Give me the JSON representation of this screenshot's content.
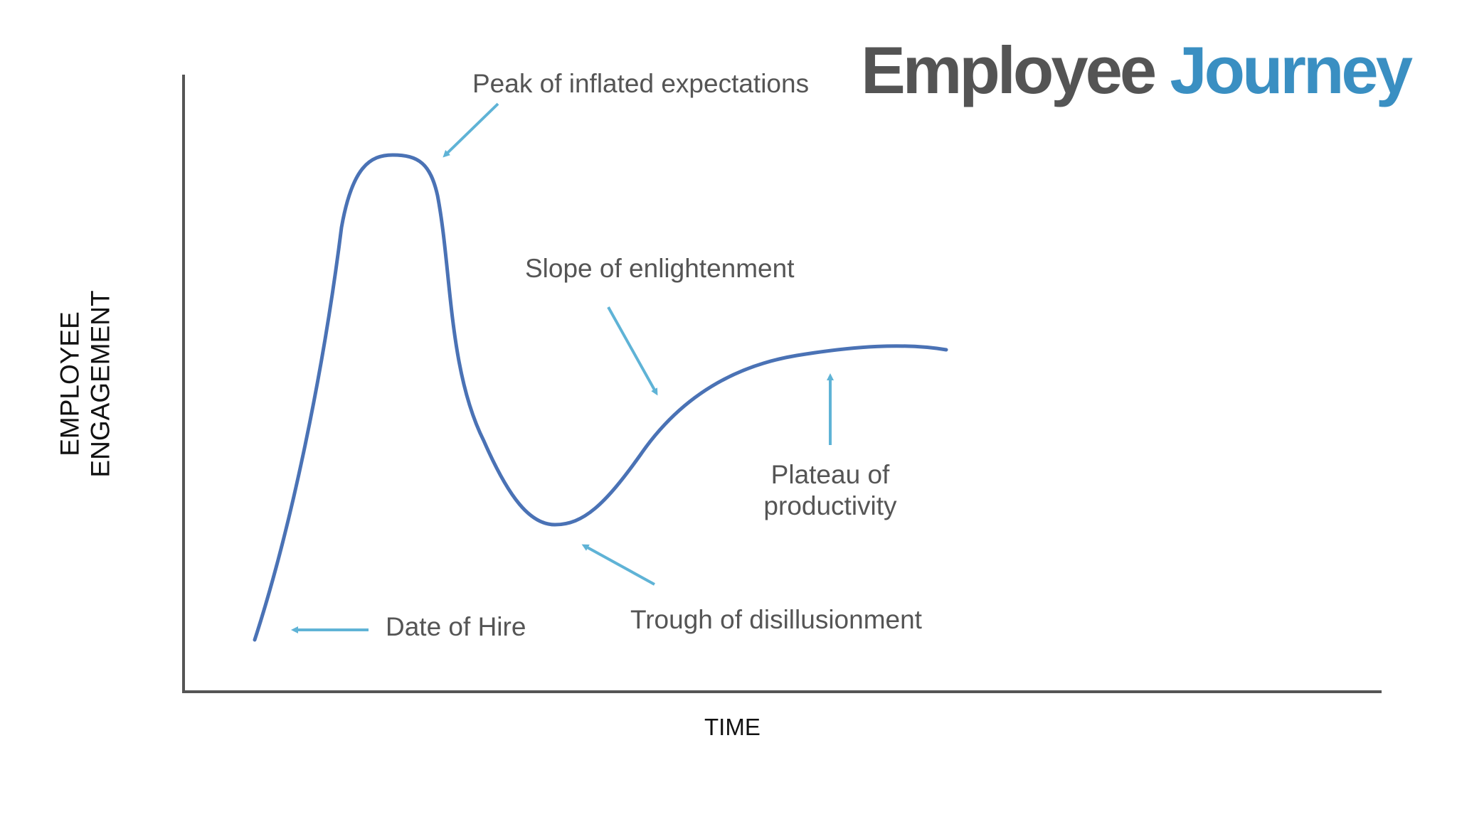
{
  "title": {
    "word1": "Employee",
    "word2": "Journey"
  },
  "axes": {
    "xlabel": "TIME",
    "ylabel_line1": "EMPLOYEE",
    "ylabel_line2": "ENGAGEMENT"
  },
  "annotations": {
    "peak": "Peak of inflated expectations",
    "slope": "Slope of enlightenment",
    "plateau_line1": "Plateau of",
    "plateau_line2": "productivity",
    "trough": "Trough of disillusionment",
    "hire": "Date of Hire"
  },
  "colors": {
    "curve": "#4a72b5",
    "arrow": "#5fb3d6",
    "axis": "#555555",
    "title_dark": "#545454",
    "title_blue": "#3a8fc2"
  }
}
